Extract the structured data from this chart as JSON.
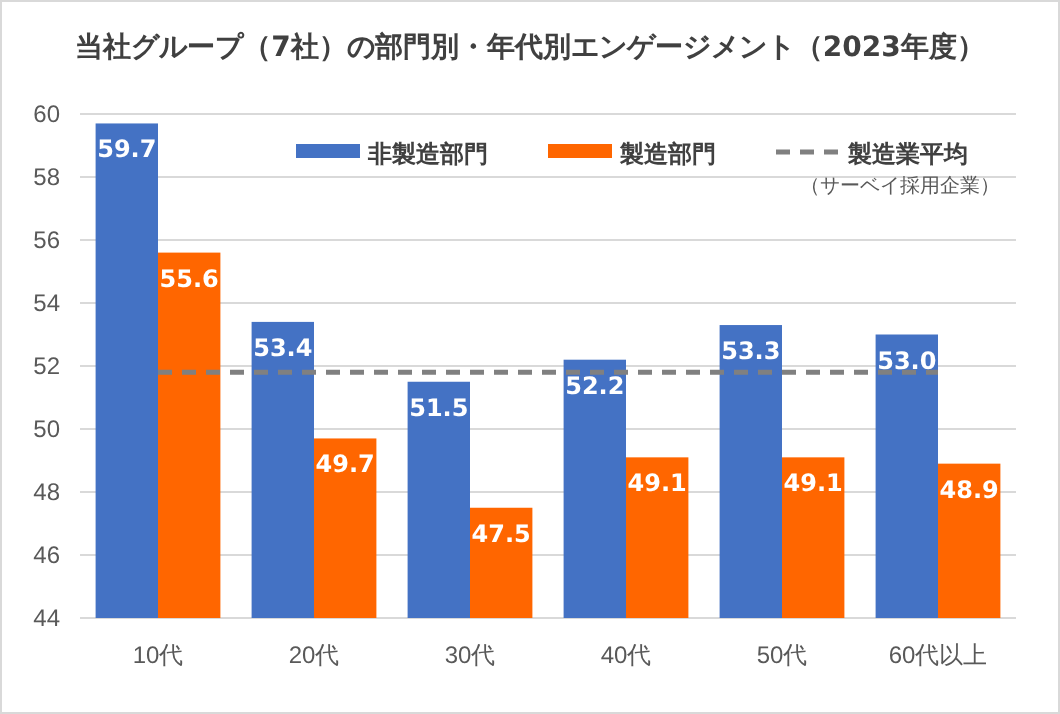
{
  "chart_data": {
    "type": "bar",
    "title": "当社グループ（7社）の部門別・年代別エンゲージメント（2023年度）",
    "categories": [
      "10代",
      "20代",
      "30代",
      "40代",
      "50代",
      "60代以上"
    ],
    "series": [
      {
        "name": "非製造部門",
        "color": "#4472c4",
        "values": [
          59.7,
          53.4,
          51.5,
          52.2,
          53.3,
          53.0
        ],
        "value_labels": [
          "59.7",
          "53.4",
          "51.5",
          "52.2",
          "53.3",
          "53.0"
        ]
      },
      {
        "name": "製造部門",
        "color": "#ff6600",
        "values": [
          55.6,
          49.7,
          47.5,
          49.1,
          49.1,
          48.9
        ],
        "value_labels": [
          "55.6",
          "49.7",
          "47.5",
          "49.1",
          "49.1",
          "48.9"
        ]
      },
      {
        "name": "製造業平均",
        "type": "line",
        "color": "#808080",
        "line_style": "dashed",
        "marker": "none",
        "values": [
          51.8,
          51.8,
          51.8,
          51.8,
          51.8,
          51.8
        ]
      }
    ],
    "ylim": [
      44,
      60
    ],
    "yticks": [
      44,
      46,
      48,
      50,
      52,
      54,
      56,
      58,
      60
    ],
    "grid": "y",
    "legend": "top right",
    "annotations": [
      "（サーベイ採用企業）"
    ]
  }
}
